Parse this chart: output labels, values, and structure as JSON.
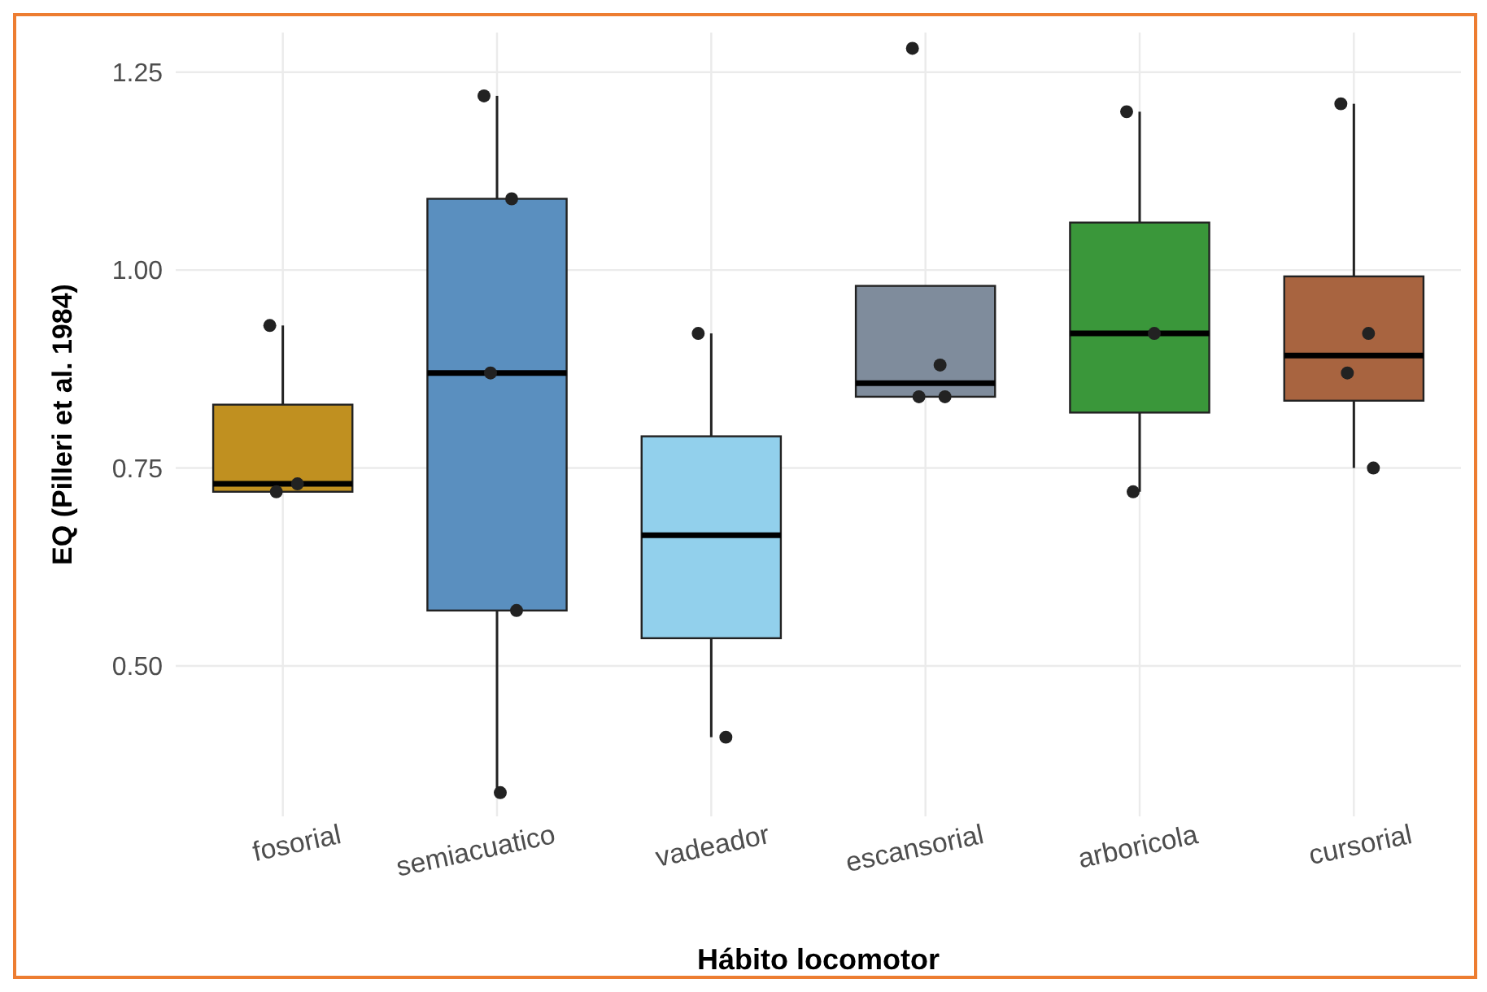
{
  "chart_data": {
    "type": "box",
    "xlabel": "Hábito locomotor",
    "ylabel": "EQ (Pilleri et al. 1984)",
    "categories": [
      "fosorial",
      "semiacuatico",
      "vadeador",
      "escansorial",
      "arboricola",
      "cursorial"
    ],
    "colors": [
      "#c09020",
      "#5a8fbf",
      "#92d0ec",
      "#7f8c9c",
      "#3a973a",
      "#a86440"
    ],
    "boxes": [
      {
        "low": 0.72,
        "q1": 0.72,
        "median": 0.73,
        "q3": 0.83,
        "high": 0.93
      },
      {
        "low": 0.34,
        "q1": 0.57,
        "median": 0.87,
        "q3": 1.09,
        "high": 1.22
      },
      {
        "low": 0.41,
        "q1": 0.535,
        "median": 0.665,
        "q3": 0.79,
        "high": 0.92
      },
      {
        "low": 0.84,
        "q1": 0.84,
        "median": 0.857,
        "q3": 0.98,
        "high": 0.98
      },
      {
        "low": 0.72,
        "q1": 0.82,
        "median": 0.92,
        "q3": 1.06,
        "high": 1.2
      },
      {
        "low": 0.75,
        "q1": 0.835,
        "median": 0.892,
        "q3": 0.992,
        "high": 1.21
      }
    ],
    "series": [
      {
        "type": "scatter",
        "color": "#222222",
        "x": [
          "fosorial",
          "fosorial",
          "fosorial",
          "semiacuatico",
          "semiacuatico",
          "semiacuatico",
          "semiacuatico",
          "semiacuatico",
          "vadeador",
          "vadeador",
          "escansorial",
          "escansorial",
          "escansorial",
          "escansorial",
          "arboricola",
          "arboricola",
          "arboricola",
          "cursorial",
          "cursorial",
          "cursorial",
          "cursorial"
        ],
        "values": [
          0.93,
          0.73,
          0.72,
          1.22,
          1.09,
          0.87,
          0.57,
          0.34,
          0.92,
          0.41,
          1.28,
          0.88,
          0.84,
          0.84,
          1.2,
          0.92,
          0.72,
          1.21,
          0.92,
          0.87,
          0.75
        ]
      }
    ],
    "ylim": [
      0.31,
      1.3
    ],
    "yticks": [
      {
        "value": 0.5,
        "label": "0.50"
      },
      0.75,
      {
        "value": 1.0,
        "label": "1.00"
      },
      1.25
    ],
    "grid": true,
    "marker": "circle"
  }
}
